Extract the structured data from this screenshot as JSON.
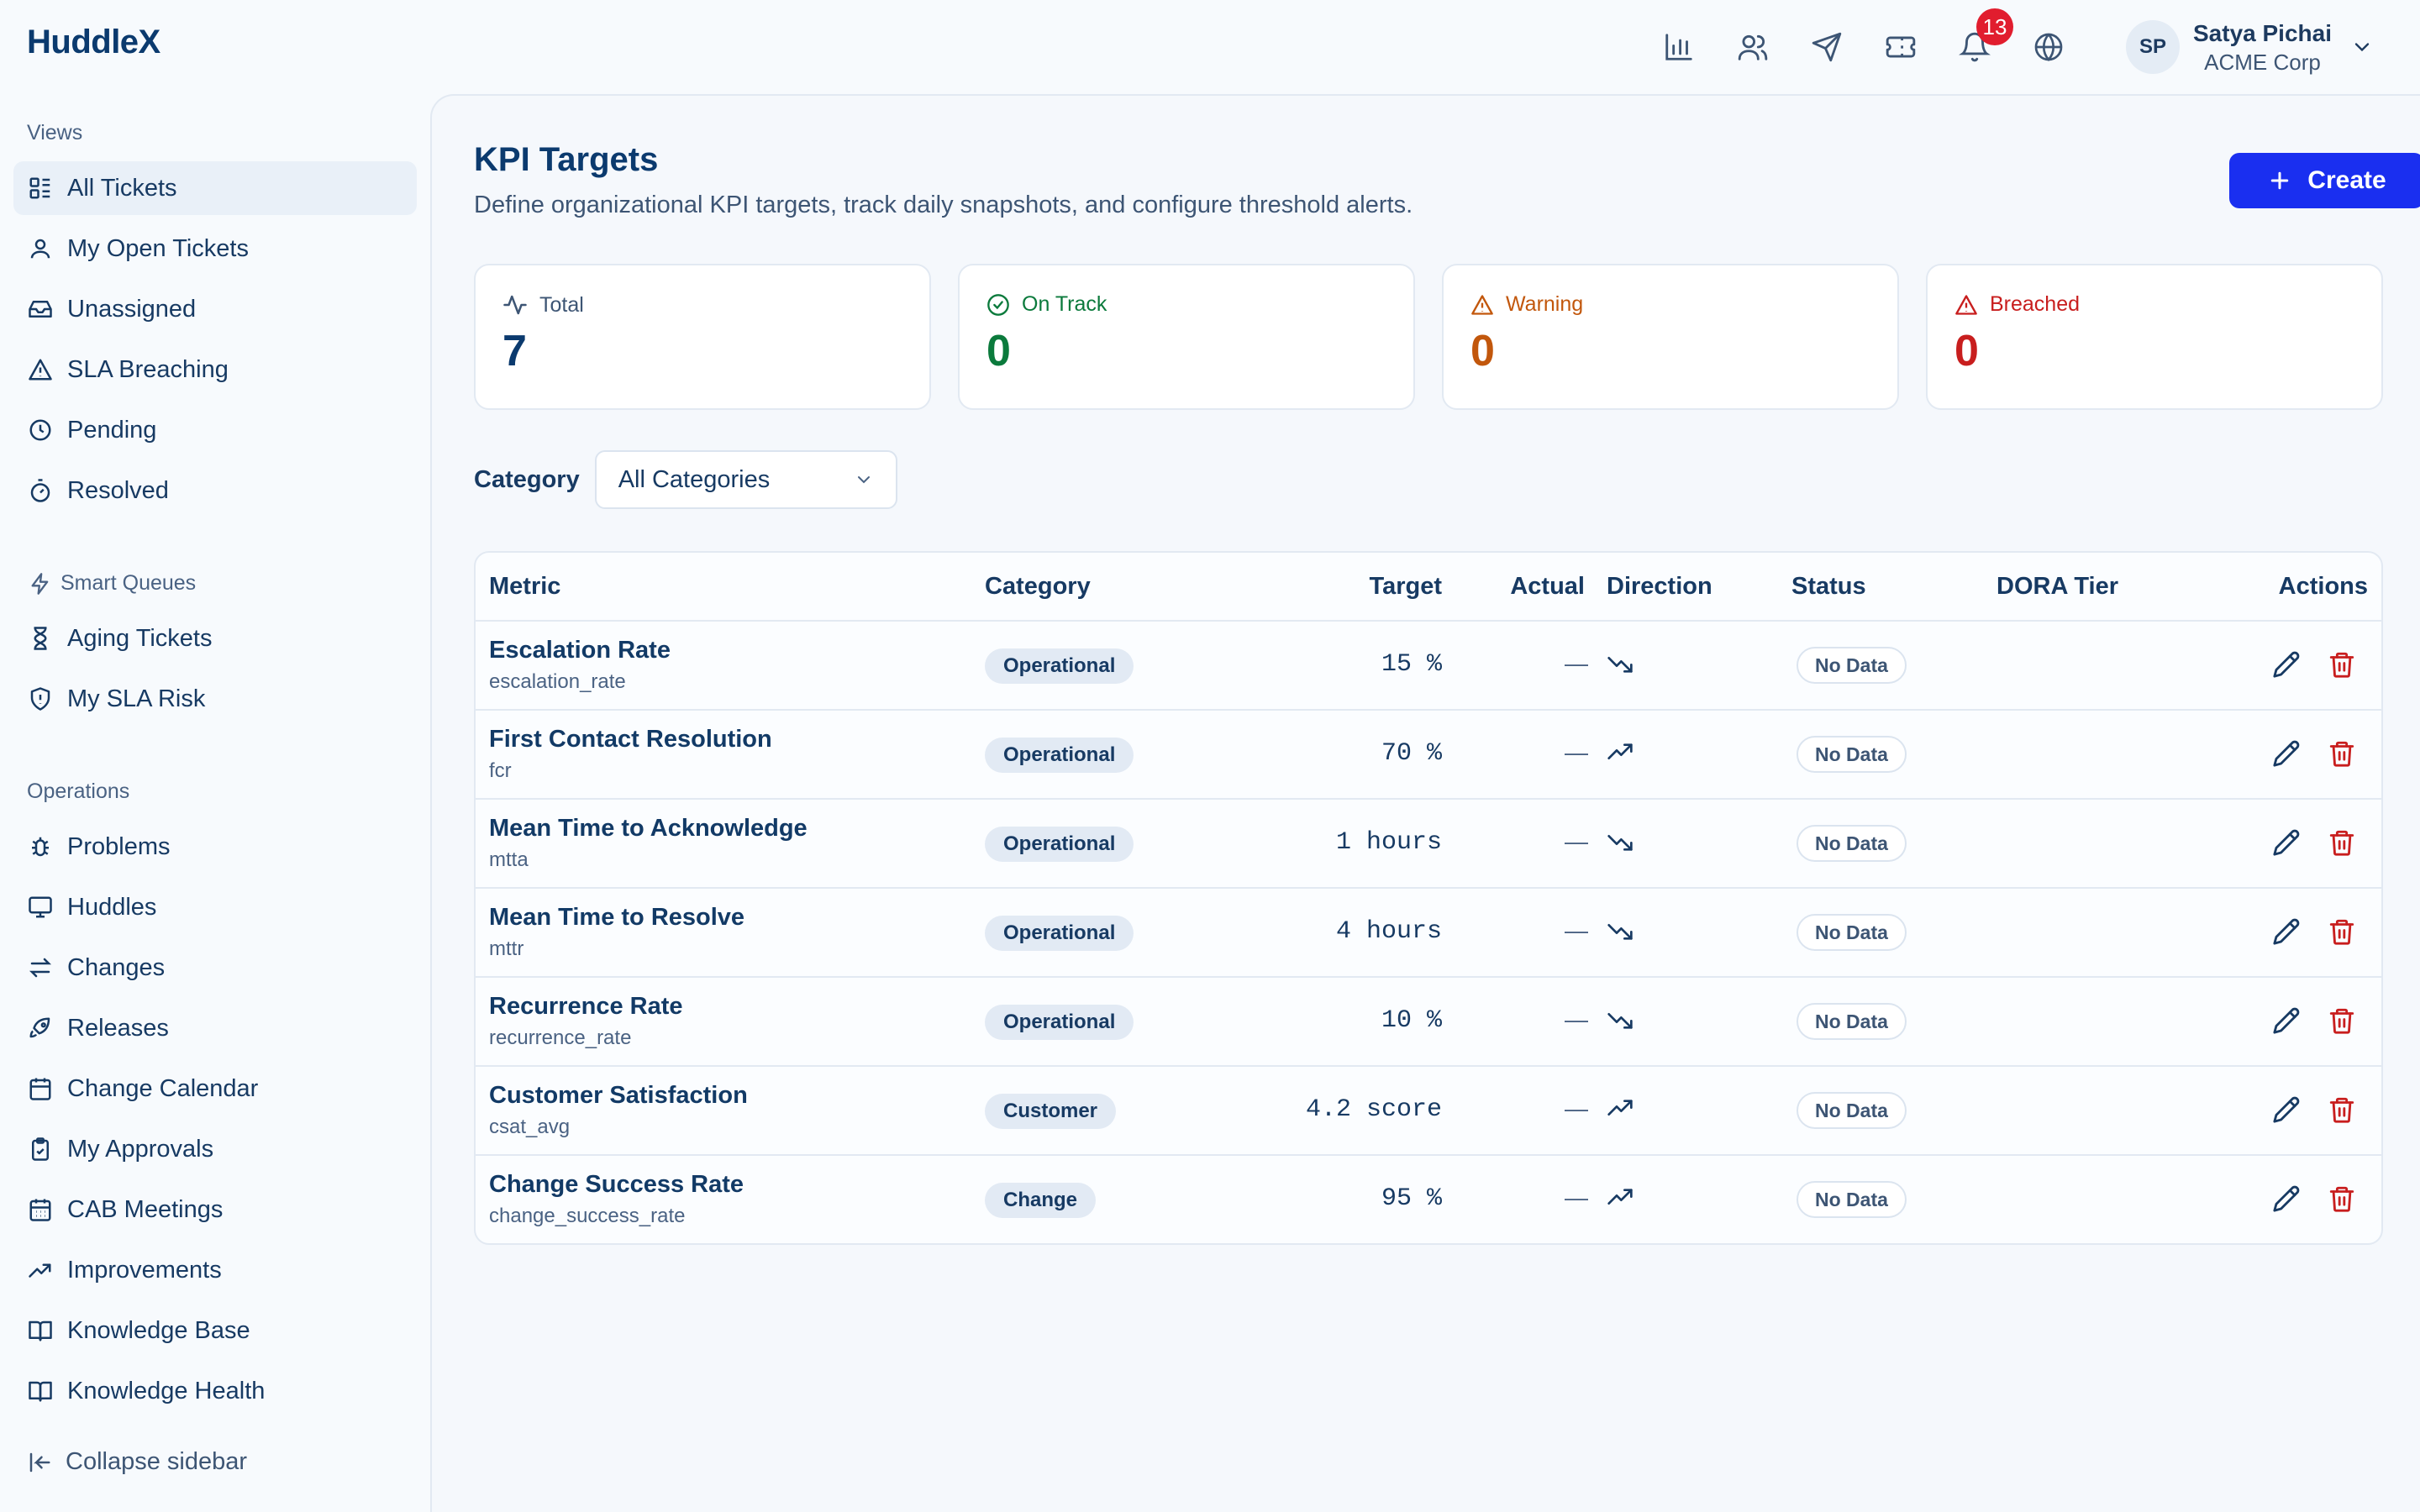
{
  "app": {
    "logo": "HuddleX"
  },
  "header": {
    "notifications_count": "13",
    "user": {
      "initials": "SP",
      "name": "Satya Pichai",
      "org": "ACME Corp"
    }
  },
  "sidebar": {
    "views_title": "Views",
    "views": [
      {
        "label": "All Tickets",
        "icon": "grid-list-icon",
        "active": true
      },
      {
        "label": "My Open Tickets",
        "icon": "user-icon"
      },
      {
        "label": "Unassigned",
        "icon": "inbox-icon"
      },
      {
        "label": "SLA Breaching",
        "icon": "warning-icon"
      },
      {
        "label": "Pending",
        "icon": "clock-icon"
      },
      {
        "label": "Resolved",
        "icon": "timer-icon"
      }
    ],
    "smart_title": "Smart Queues",
    "smart": [
      {
        "label": "Aging Tickets",
        "icon": "hourglass-icon"
      },
      {
        "label": "My SLA Risk",
        "icon": "shield-alert-icon"
      }
    ],
    "ops_title": "Operations",
    "ops": [
      {
        "label": "Problems",
        "icon": "bug-icon"
      },
      {
        "label": "Huddles",
        "icon": "monitor-icon"
      },
      {
        "label": "Changes",
        "icon": "swap-icon"
      },
      {
        "label": "Releases",
        "icon": "rocket-icon"
      },
      {
        "label": "Change Calendar",
        "icon": "calendar-icon"
      },
      {
        "label": "My Approvals",
        "icon": "clipboard-check-icon"
      },
      {
        "label": "CAB Meetings",
        "icon": "calendar-grid-icon"
      },
      {
        "label": "Improvements",
        "icon": "trend-up-icon"
      },
      {
        "label": "Knowledge Base",
        "icon": "book-open-icon"
      },
      {
        "label": "Knowledge Health",
        "icon": "book-icon"
      }
    ],
    "collapse_label": "Collapse sidebar"
  },
  "page": {
    "title": "KPI Targets",
    "subtitle": "Define organizational KPI targets, track daily snapshots, and configure threshold alerts.",
    "create_label": "Create"
  },
  "stats": [
    {
      "label": "Total",
      "value": "7",
      "color": "#0b3a6e",
      "label_color": "#3d5574",
      "icon": "activity-icon"
    },
    {
      "label": "On Track",
      "value": "0",
      "color": "#0b7a3c",
      "label_color": "#0b7a3c",
      "icon": "check-circle-icon"
    },
    {
      "label": "Warning",
      "value": "0",
      "color": "#c2570c",
      "label_color": "#c2570c",
      "icon": "warning-icon"
    },
    {
      "label": "Breached",
      "value": "0",
      "color": "#c81e1e",
      "label_color": "#c81e1e",
      "icon": "warning-icon"
    }
  ],
  "filter": {
    "label": "Category",
    "selected": "All Categories"
  },
  "table": {
    "columns": [
      "Metric",
      "Category",
      "Target",
      "Actual",
      "Direction",
      "Status",
      "DORA Tier",
      "Actions"
    ],
    "rows": [
      {
        "name": "Escalation Rate",
        "key": "escalation_rate",
        "category": "Operational",
        "target": "15 %",
        "actual": "—",
        "direction": "down",
        "status": "No Data"
      },
      {
        "name": "First Contact Resolution",
        "key": "fcr",
        "category": "Operational",
        "target": "70 %",
        "actual": "—",
        "direction": "up",
        "status": "No Data"
      },
      {
        "name": "Mean Time to Acknowledge",
        "key": "mtta",
        "category": "Operational",
        "target": "1 hours",
        "actual": "—",
        "direction": "down",
        "status": "No Data"
      },
      {
        "name": "Mean Time to Resolve",
        "key": "mttr",
        "category": "Operational",
        "target": "4 hours",
        "actual": "—",
        "direction": "down",
        "status": "No Data"
      },
      {
        "name": "Recurrence Rate",
        "key": "recurrence_rate",
        "category": "Operational",
        "target": "10 %",
        "actual": "—",
        "direction": "down",
        "status": "No Data"
      },
      {
        "name": "Customer Satisfaction",
        "key": "csat_avg",
        "category": "Customer",
        "target": "4.2 score",
        "actual": "—",
        "direction": "up",
        "status": "No Data"
      },
      {
        "name": "Change Success Rate",
        "key": "change_success_rate",
        "category": "Change",
        "target": "95 %",
        "actual": "—",
        "direction": "up",
        "status": "No Data"
      }
    ]
  },
  "colors": {
    "accent": "#1a2ff0",
    "danger": "#c81e1e",
    "text": "#173a63"
  }
}
